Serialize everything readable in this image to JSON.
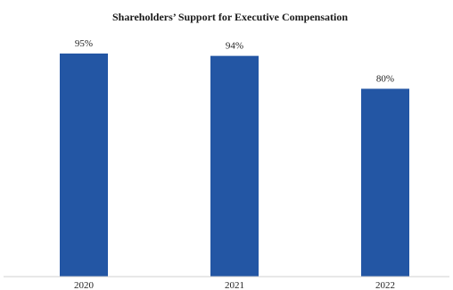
{
  "chart_data": {
    "type": "bar",
    "title": "Shareholders’ Support for Executive Compensation",
    "categories": [
      "2020",
      "2021",
      "2022"
    ],
    "values": [
      95,
      94,
      80
    ],
    "value_labels": [
      "95%",
      "94%",
      "80%"
    ],
    "unit": "%",
    "ylim": [
      0,
      100
    ],
    "grid": false,
    "legend": "none",
    "xlabel": "",
    "ylabel": ""
  },
  "colors": {
    "bar": "#2356a4",
    "axis": "#d0d0d0"
  }
}
